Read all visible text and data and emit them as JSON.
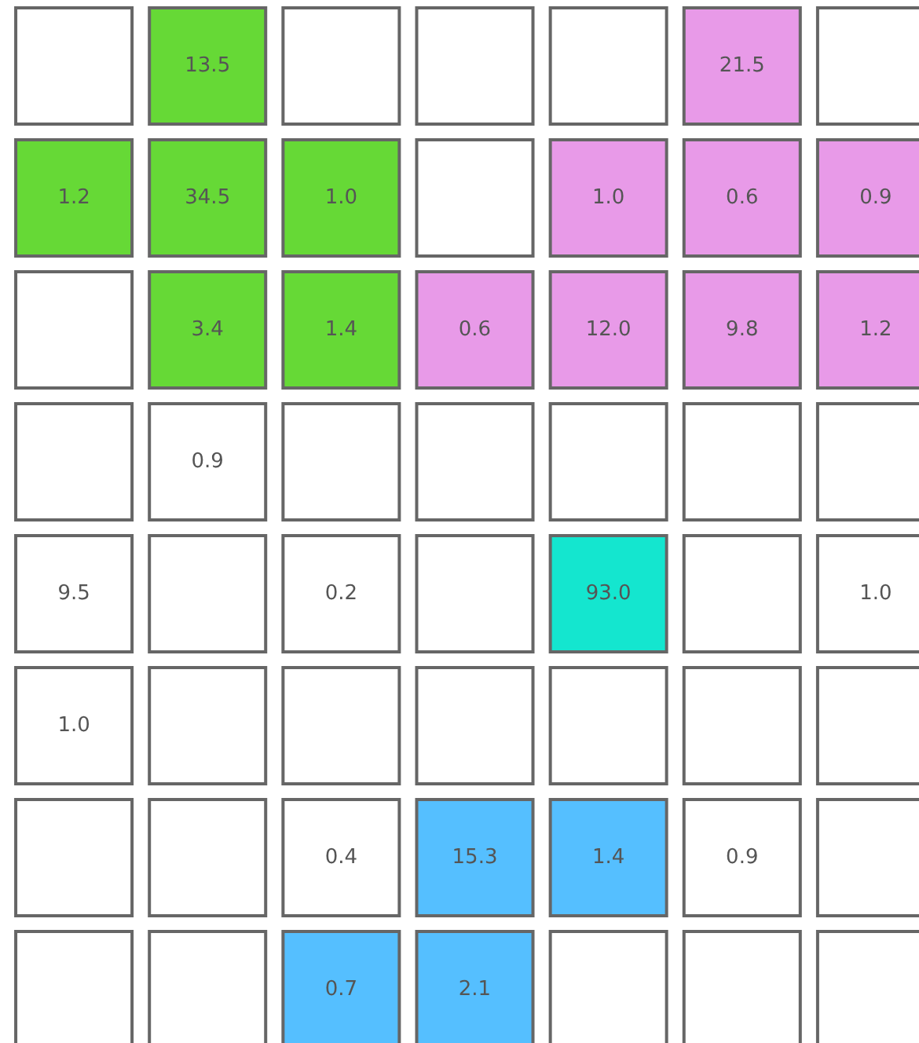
{
  "chart_data": {
    "type": "heatmap",
    "categories": [
      null,
      null,
      null,
      null,
      null,
      null,
      null
    ],
    "y_categories": [
      null,
      null,
      null,
      null,
      null,
      null,
      null,
      null
    ],
    "cells": [
      [
        null,
        13.5,
        null,
        null,
        null,
        21.5,
        null
      ],
      [
        1.2,
        34.5,
        1.0,
        null,
        1.0,
        0.6,
        0.9
      ],
      [
        null,
        3.4,
        1.4,
        0.6,
        12.0,
        9.8,
        1.2
      ],
      [
        null,
        0.9,
        null,
        null,
        null,
        null,
        null
      ],
      [
        9.5,
        null,
        0.2,
        null,
        93.0,
        null,
        1.0
      ],
      [
        1.0,
        null,
        null,
        null,
        null,
        null,
        null
      ],
      [
        null,
        null,
        0.4,
        15.3,
        1.4,
        0.9,
        null
      ],
      [
        null,
        null,
        0.7,
        2.1,
        null,
        null,
        null
      ]
    ],
    "colors": [
      [
        "#ffffff",
        "#66d936",
        "#ffffff",
        "#ffffff",
        "#ffffff",
        "#e89ae8",
        "#ffffff"
      ],
      [
        "#66d936",
        "#66d936",
        "#66d936",
        "#ffffff",
        "#e89ae8",
        "#e89ae8",
        "#e89ae8"
      ],
      [
        "#ffffff",
        "#66d936",
        "#66d936",
        "#e89ae8",
        "#e89ae8",
        "#e89ae8",
        "#e89ae8"
      ],
      [
        "#ffffff",
        "#ffffff",
        "#ffffff",
        "#ffffff",
        "#ffffff",
        "#ffffff",
        "#ffffff"
      ],
      [
        "#ffffff",
        "#ffffff",
        "#ffffff",
        "#ffffff",
        "#14e6cf",
        "#ffffff",
        "#ffffff"
      ],
      [
        "#ffffff",
        "#ffffff",
        "#ffffff",
        "#ffffff",
        "#ffffff",
        "#ffffff",
        "#ffffff"
      ],
      [
        "#ffffff",
        "#ffffff",
        "#ffffff",
        "#55bfff",
        "#55bfff",
        "#ffffff",
        "#ffffff"
      ],
      [
        "#ffffff",
        "#ffffff",
        "#55bfff",
        "#55bfff",
        "#ffffff",
        "#ffffff",
        "#ffffff"
      ]
    ],
    "cell_labels": [
      [
        null,
        "13.5",
        null,
        null,
        null,
        "21.5",
        null
      ],
      [
        "1.2",
        "34.5",
        "1.0",
        null,
        "1.0",
        "0.6",
        "0.9"
      ],
      [
        null,
        "3.4",
        "1.4",
        "0.6",
        "12.0",
        "9.8",
        "1.2"
      ],
      [
        null,
        "0.9",
        null,
        null,
        null,
        null,
        null
      ],
      [
        "9.5",
        null,
        "0.2",
        null,
        "93.0",
        null,
        "1.0"
      ],
      [
        "1.0",
        null,
        null,
        null,
        null,
        null,
        null
      ],
      [
        null,
        null,
        "0.4",
        "15.3",
        "1.4",
        "0.9",
        null
      ],
      [
        null,
        null,
        "0.7",
        "2.1",
        null,
        null,
        null
      ]
    ]
  }
}
